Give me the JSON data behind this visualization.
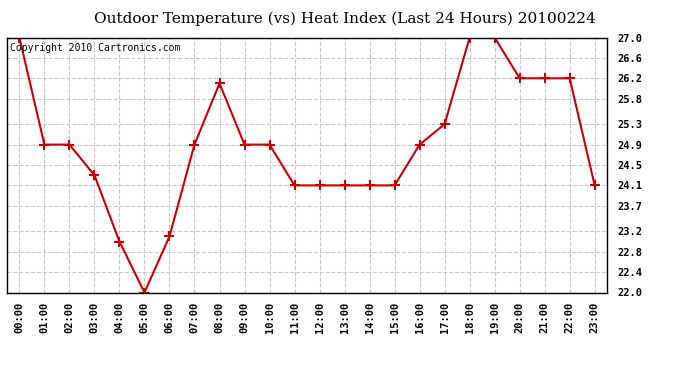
{
  "title": "Outdoor Temperature (vs) Heat Index (Last 24 Hours) 20100224",
  "copyright_text": "Copyright 2010 Cartronics.com",
  "x_labels": [
    "00:00",
    "01:00",
    "02:00",
    "03:00",
    "04:00",
    "05:00",
    "06:00",
    "07:00",
    "08:00",
    "09:00",
    "10:00",
    "11:00",
    "12:00",
    "13:00",
    "14:00",
    "15:00",
    "16:00",
    "17:00",
    "18:00",
    "19:00",
    "20:00",
    "21:00",
    "22:00",
    "23:00"
  ],
  "y_values": [
    27.0,
    24.9,
    24.9,
    24.3,
    23.0,
    22.0,
    23.1,
    24.9,
    26.1,
    24.9,
    24.9,
    24.1,
    24.1,
    24.1,
    24.1,
    24.1,
    24.9,
    25.3,
    27.0,
    27.0,
    26.2,
    26.2,
    26.2,
    24.1
  ],
  "line_color": "#cc0000",
  "marker": "+",
  "marker_size": 7,
  "marker_linewidth": 1.5,
  "line_width": 1.5,
  "background_color": "#ffffff",
  "plot_bg_color": "#ffffff",
  "grid_color": "#c8c8c8",
  "grid_style": "--",
  "ylim": [
    22.0,
    27.0
  ],
  "yticks": [
    22.0,
    22.4,
    22.8,
    23.2,
    23.7,
    24.1,
    24.5,
    24.9,
    25.3,
    25.8,
    26.2,
    26.6,
    27.0
  ],
  "title_fontsize": 11,
  "tick_fontsize": 7.5,
  "copyright_fontsize": 7
}
